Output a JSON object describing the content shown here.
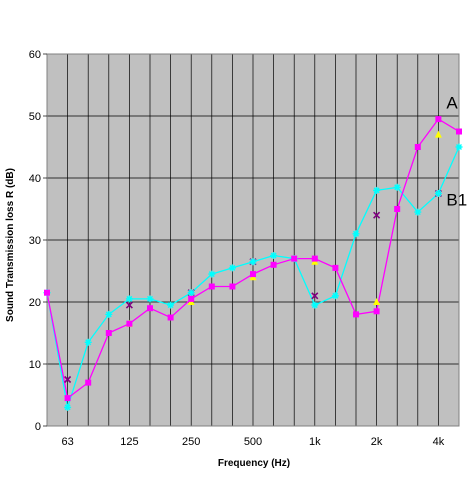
{
  "chart_data": {
    "type": "line",
    "xlabel": "Frequency (Hz)",
    "ylabel": "Sound Transmission loss R (dB)",
    "ylim": [
      0,
      60
    ],
    "yticks": [
      0,
      10,
      20,
      30,
      40,
      50,
      60
    ],
    "grid": true,
    "plot_background": "#c0c0c0",
    "categories": [
      "50",
      "63",
      "80",
      "100",
      "125",
      "160",
      "200",
      "250",
      "315",
      "400",
      "500",
      "630",
      "800",
      "1k",
      "1.25k",
      "1.6k",
      "2k",
      "2.5k",
      "3.15k",
      "4k",
      "5k"
    ],
    "x_tick_labels": [
      "63",
      "125",
      "250",
      "500",
      "1k",
      "2k",
      "4k"
    ],
    "x_tick_label_categories": [
      1,
      4,
      7,
      10,
      13,
      16,
      19
    ],
    "series": [
      {
        "name": "A",
        "color": "#ff00ff",
        "marker": "square",
        "values": [
          21.5,
          4.5,
          7,
          15,
          16.5,
          19,
          17.5,
          20.5,
          22.5,
          22.5,
          24.5,
          26,
          27,
          27,
          25.5,
          18,
          18.5,
          35,
          45,
          49.5,
          47.5
        ]
      },
      {
        "name": "B1",
        "color": "#00ffff",
        "marker": "star",
        "values": [
          21.5,
          3,
          13.5,
          18,
          20.5,
          20.5,
          19.5,
          21.5,
          24.5,
          25.5,
          26.5,
          27.5,
          27,
          19.5,
          21,
          31,
          38,
          38.5,
          34.5,
          37.5,
          45
        ]
      },
      {
        "name": "",
        "color": "#ffff00",
        "marker": "triangle",
        "values": [
          null,
          null,
          null,
          null,
          16.5,
          null,
          null,
          20,
          null,
          null,
          24,
          null,
          null,
          26.5,
          null,
          null,
          20,
          null,
          null,
          47,
          null
        ]
      },
      {
        "name": "",
        "color": "#800080",
        "marker": "x",
        "values": [
          null,
          7.5,
          null,
          null,
          19.5,
          null,
          null,
          21.5,
          null,
          null,
          26.5,
          null,
          null,
          21,
          null,
          null,
          34,
          null,
          null,
          37.5,
          null
        ]
      }
    ],
    "annotations": [
      {
        "text": "A",
        "category": 19,
        "value": 51.2
      },
      {
        "text": "B1",
        "category": 19,
        "value": 35.6
      }
    ]
  }
}
